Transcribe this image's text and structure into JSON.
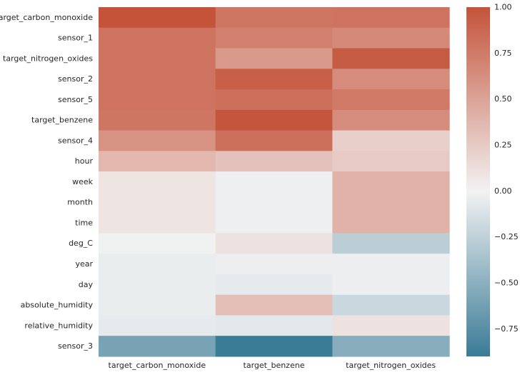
{
  "chart_data": {
    "type": "heatmap",
    "title": "",
    "xlabel": "",
    "ylabel": "",
    "columns": [
      "target_carbon_monoxide",
      "target_benzene",
      "target_nitrogen_oxides"
    ],
    "rows": [
      "target_carbon_monoxide",
      "sensor_1",
      "target_nitrogen_oxides",
      "sensor_2",
      "sensor_5",
      "target_benzene",
      "sensor_4",
      "hour",
      "week",
      "month",
      "time",
      "deg_C",
      "year",
      "day",
      "absolute_humidity",
      "relative_humidity",
      "sensor_3"
    ],
    "values": [
      [
        1.0,
        0.78,
        0.8
      ],
      [
        0.8,
        0.72,
        0.66
      ],
      [
        0.8,
        0.56,
        0.95
      ],
      [
        0.8,
        0.92,
        0.64
      ],
      [
        0.8,
        0.82,
        0.76
      ],
      [
        0.78,
        0.98,
        0.64
      ],
      [
        0.6,
        0.82,
        0.22
      ],
      [
        0.37,
        0.3,
        0.25
      ],
      [
        0.08,
        -0.02,
        0.4
      ],
      [
        0.08,
        -0.02,
        0.4
      ],
      [
        0.08,
        -0.02,
        0.4
      ],
      [
        -0.01,
        0.1,
        -0.27
      ],
      [
        -0.04,
        -0.03,
        -0.03
      ],
      [
        -0.04,
        -0.06,
        -0.03
      ],
      [
        -0.04,
        0.32,
        -0.2
      ],
      [
        -0.06,
        -0.08,
        0.1
      ],
      [
        -0.6,
        -0.9,
        -0.52
      ]
    ],
    "colorbar": {
      "vmin": -0.9,
      "vmax": 1.0,
      "ticks": [
        1.0,
        0.75,
        0.5,
        0.25,
        0.0,
        -0.25,
        -0.5,
        -0.75
      ],
      "tick_labels": [
        "1.00",
        "0.75",
        "0.50",
        "0.25",
        "0.00",
        "−0.25",
        "−0.50",
        "−0.75"
      ]
    },
    "colors": {
      "negative": "#3a7b96",
      "neutral": "#f2f2f2",
      "positive": "#c4533a"
    },
    "grid": false,
    "legend": "colorbar-right"
  }
}
